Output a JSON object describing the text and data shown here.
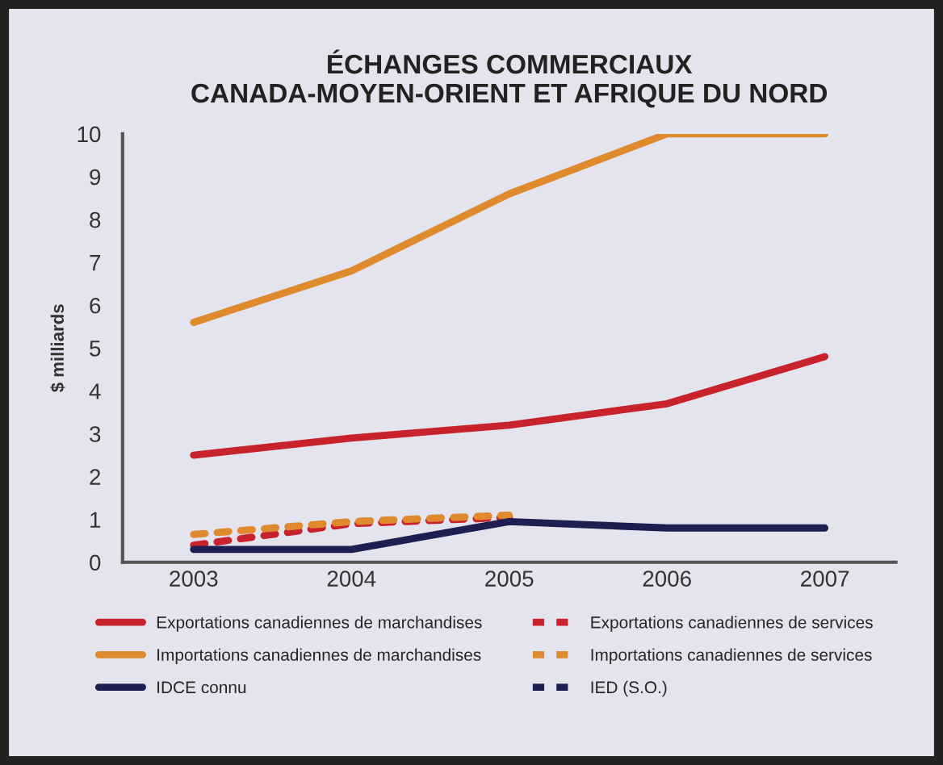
{
  "chart_data": {
    "type": "line",
    "title": "ÉCHANGES COMMERCIAUX\nCANADA-MOYEN-ORIENT ET AFRIQUE DU NORD",
    "ylabel": "$ milliards",
    "categories": [
      "2003",
      "2004",
      "2005",
      "2006",
      "2007"
    ],
    "series": [
      {
        "name": "Exportations canadiennes de marchandises",
        "color": "#c8232c",
        "line_style": "solid",
        "values": [
          2.5,
          2.9,
          3.2,
          3.7,
          4.8
        ]
      },
      {
        "name": "Exportations canadiennes de services",
        "color": "#c8232c",
        "line_style": "dashed",
        "values": [
          0.4,
          0.9,
          1.05,
          null,
          null
        ]
      },
      {
        "name": "Importations canadiennes de marchandises",
        "color": "#e08a2e",
        "line_style": "solid",
        "values": [
          5.6,
          6.8,
          8.6,
          10.0,
          10.0
        ]
      },
      {
        "name": "Importations canadiennes de services",
        "color": "#e08a2e",
        "line_style": "dashed",
        "values": [
          0.65,
          0.95,
          1.1,
          null,
          null
        ]
      },
      {
        "name": "IDCE connu",
        "color": "#1c1f4f",
        "line_style": "solid",
        "values": [
          0.3,
          0.3,
          0.95,
          0.8,
          0.8
        ]
      },
      {
        "name": "IED (S.O.)",
        "color": "#1c1f4f",
        "line_style": "dashed",
        "values": [
          null,
          null,
          null,
          null,
          null
        ]
      }
    ],
    "ylim": [
      0,
      10
    ],
    "yticks": [
      0,
      1,
      2,
      3,
      4,
      5,
      6,
      7,
      8,
      9,
      10
    ],
    "grid": false,
    "legend": "bottom",
    "marker": "none"
  }
}
